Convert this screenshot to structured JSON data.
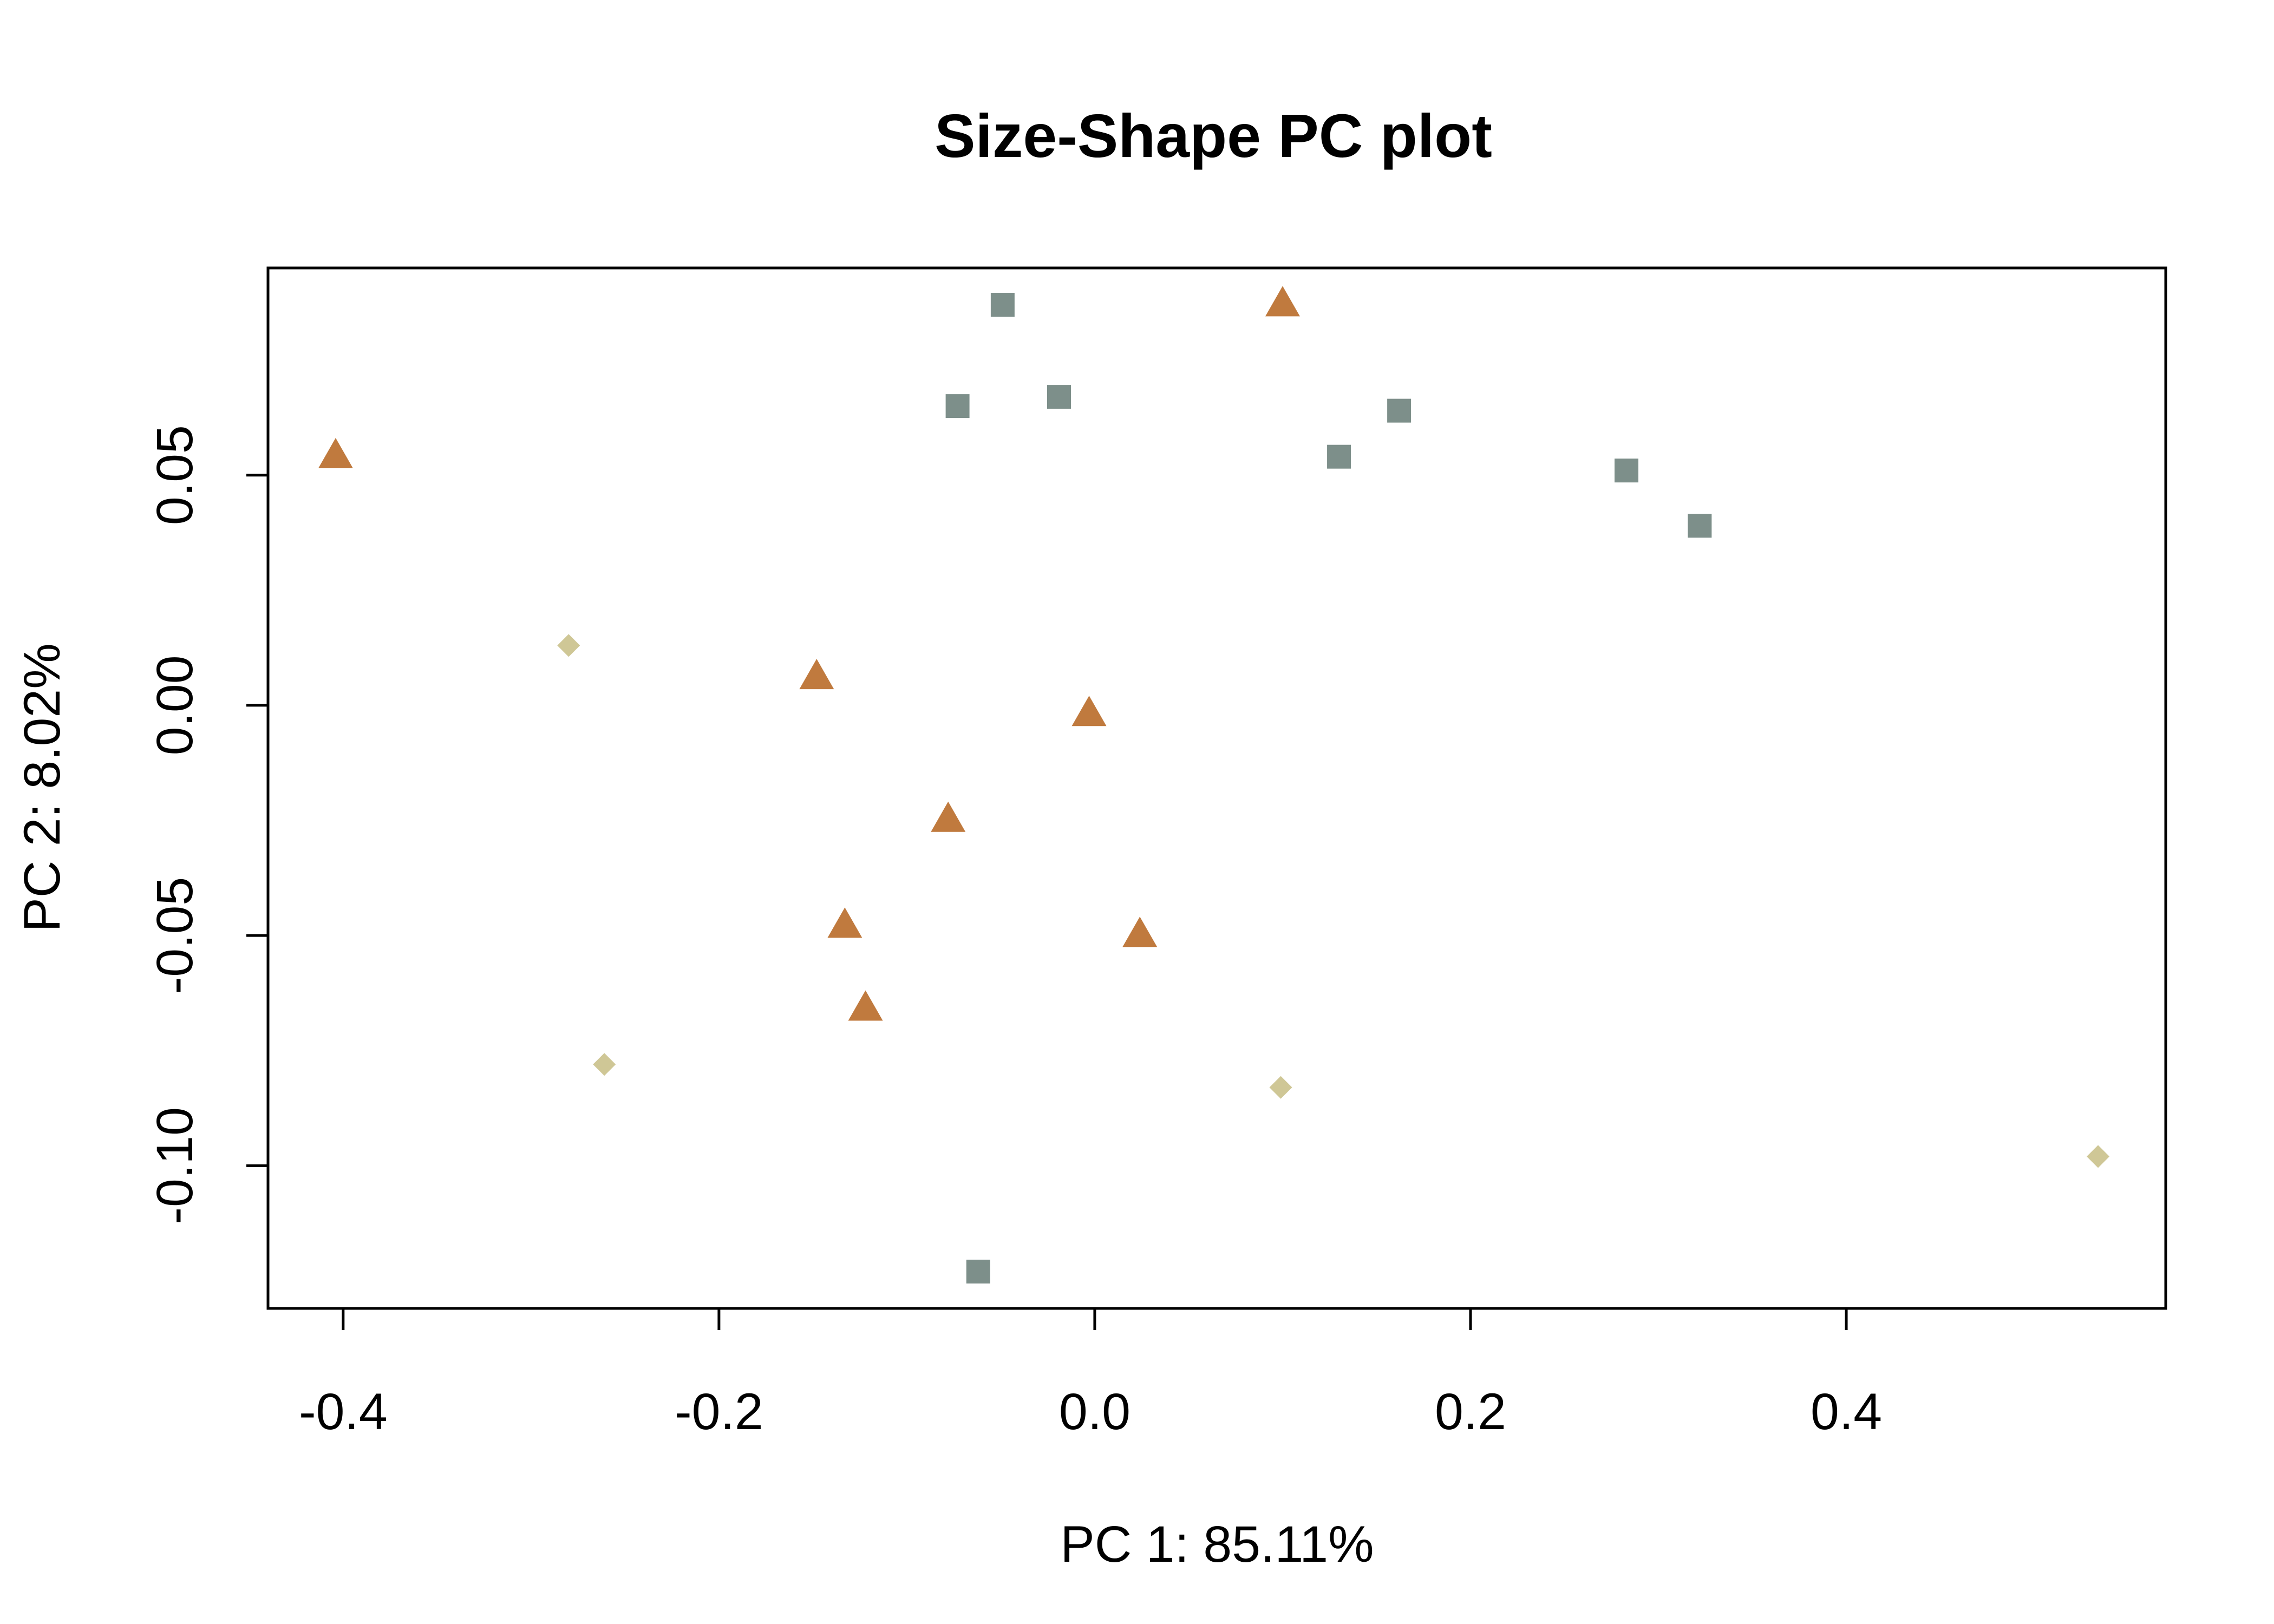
{
  "chart_data": {
    "type": "scatter",
    "title": "Size-Shape PC plot",
    "xlabel": "PC 1: 85.11%",
    "ylabel": "PC 2: 8.02%",
    "xlim": [
      -0.44,
      0.57
    ],
    "ylim": [
      -0.131,
      0.095
    ],
    "x_ticks": [
      -0.4,
      -0.2,
      0.0,
      0.2,
      0.4
    ],
    "x_tick_labels": [
      "-0.4",
      "-0.2",
      "0.0",
      "0.2",
      "0.4"
    ],
    "y_ticks": [
      -0.1,
      -0.05,
      0.0,
      0.05
    ],
    "y_tick_labels": [
      "-0.10",
      "-0.05",
      "0.00",
      "0.05"
    ],
    "grid": false,
    "legend": false,
    "series": [
      {
        "marker": "triangle",
        "color": "#C07A3E",
        "points": [
          [
            -0.404,
            0.054
          ],
          [
            -0.148,
            0.006
          ],
          [
            -0.003,
            -0.002
          ],
          [
            -0.078,
            -0.025
          ],
          [
            -0.133,
            -0.048
          ],
          [
            0.024,
            -0.05
          ],
          [
            -0.122,
            -0.066
          ],
          [
            0.1,
            0.087
          ]
        ]
      },
      {
        "marker": "square",
        "color": "#7D8F8A",
        "points": [
          [
            -0.049,
            0.087
          ],
          [
            -0.073,
            0.065
          ],
          [
            -0.019,
            0.067
          ],
          [
            0.162,
            0.064
          ],
          [
            0.13,
            0.054
          ],
          [
            0.283,
            0.051
          ],
          [
            0.322,
            0.039
          ],
          [
            -0.062,
            -0.123
          ]
        ]
      },
      {
        "marker": "diamond",
        "color": "#CFC796",
        "points": [
          [
            -0.28,
            0.013
          ],
          [
            -0.261,
            -0.078
          ],
          [
            0.099,
            -0.083
          ],
          [
            0.534,
            -0.098
          ]
        ]
      }
    ]
  }
}
